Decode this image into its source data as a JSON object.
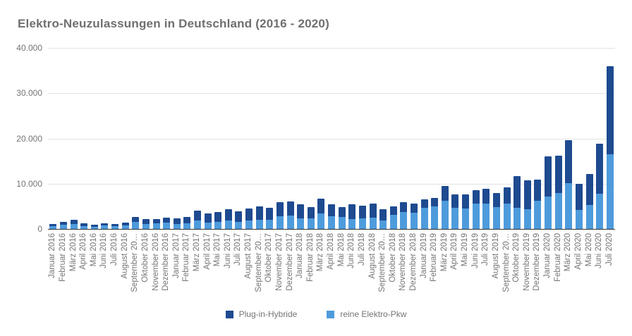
{
  "title": "Elektro-Neuzulassungen in Deutschland (2016 - 2020)",
  "colors": {
    "phev": "#1E4A90",
    "bev": "#4E9BDC",
    "title_text": "#6f6f6f",
    "axis_text": "#757575",
    "gridline": "#e3e3e3",
    "baseline": "#333333",
    "background": "#ffffff"
  },
  "chart_data": {
    "type": "bar",
    "stacked": true,
    "title": "Elektro-Neuzulassungen in Deutschland (2016 - 2020)",
    "xlabel": "",
    "ylabel": "",
    "ylim": [
      0,
      40000
    ],
    "yticks": [
      {
        "label": "40.000",
        "value": 40000
      },
      {
        "label": "30.000",
        "value": 30000
      },
      {
        "label": "20.000",
        "value": 20000
      },
      {
        "label": "10.000",
        "value": 10000
      },
      {
        "label": "0",
        "value": 0
      }
    ],
    "grid": true,
    "legend_position": "bottom",
    "legend": [
      {
        "label": "Plug-in-Hybride",
        "color_key": "phev"
      },
      {
        "label": "reine Elektro-Pkw",
        "color_key": "bev"
      }
    ],
    "categories": [
      "Januar 2016",
      "Februar 2016",
      "März 2016",
      "April 2016",
      "Mai 2016",
      "Juni 2016",
      "Juli 2016",
      "August 2016",
      "September 20…",
      "Oktober 2016",
      "November 2016",
      "Dezember 2016",
      "Januar 2017",
      "Februar 2017",
      "März 2017",
      "April 2017",
      "Mai 2017",
      "Juni 2017",
      "Juli 2017",
      "August 2017",
      "September 20…",
      "Oktober 2017",
      "November 2017",
      "Dezember 2017",
      "Januar 2018",
      "Februar 2018",
      "März 2018",
      "April 2018",
      "Mai 2018",
      "Juni 2018",
      "Juli 2018",
      "August 2018",
      "September 20…",
      "Oktober 2018",
      "November 2018",
      "Dezember 2018",
      "Januar 2019",
      "Februar 2019",
      "März 2019",
      "April 2019",
      "Mai 2019",
      "Juni 2019",
      "Juli 2019",
      "August 2019",
      "September 20…",
      "Oktober 2019",
      "November 2019",
      "Dezember 2019",
      "Januar 2020",
      "Februar 2020",
      "März 2020",
      "April 2020",
      "Mai 2020",
      "Juni 2020",
      "Juli 2020"
    ],
    "series": [
      {
        "name": "reine Elektro-Pkw",
        "color_key": "bev",
        "stack_order": "bottom",
        "values": [
          550,
          850,
          1150,
          600,
          500,
          700,
          600,
          750,
          1500,
          1100,
          1200,
          1400,
          1050,
          1300,
          1800,
          1400,
          1500,
          1800,
          1600,
          1900,
          2000,
          2000,
          2800,
          3000,
          2400,
          2300,
          3400,
          2800,
          2600,
          2100,
          2300,
          2450,
          1900,
          3050,
          3700,
          3600,
          4600,
          4900,
          6250,
          4600,
          4450,
          5650,
          5650,
          4850,
          5650,
          4700,
          4350,
          6200,
          7200,
          7900,
          10100,
          4250,
          5300,
          7800,
          16500
        ]
      },
      {
        "name": "Plug-in-Hybride",
        "color_key": "phev",
        "stack_order": "top",
        "values": [
          600,
          750,
          850,
          600,
          500,
          600,
          550,
          650,
          1200,
          1050,
          950,
          1100,
          1250,
          1350,
          2200,
          2100,
          2200,
          2600,
          2300,
          2600,
          3000,
          2700,
          3100,
          3100,
          3000,
          2500,
          3300,
          2600,
          2300,
          3300,
          2800,
          3100,
          2450,
          1900,
          2200,
          1950,
          2000,
          1900,
          3200,
          3000,
          3150,
          2850,
          3250,
          3100,
          3500,
          7000,
          6400,
          4750,
          8800,
          8300,
          9500,
          5700,
          6800,
          11000,
          19400
        ]
      }
    ]
  }
}
